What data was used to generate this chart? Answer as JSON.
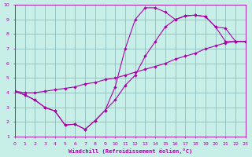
{
  "xlabel": "Windchill (Refroidissement éolien,°C)",
  "bg_color": "#c8eee8",
  "grid_color": "#8fbfbf",
  "line_color": "#aa00aa",
  "xlim": [
    0,
    23
  ],
  "ylim": [
    1,
    10
  ],
  "xticks": [
    0,
    1,
    2,
    3,
    4,
    5,
    6,
    7,
    8,
    9,
    10,
    11,
    12,
    13,
    14,
    15,
    16,
    17,
    18,
    19,
    20,
    21,
    22,
    23
  ],
  "yticks": [
    1,
    2,
    3,
    4,
    5,
    6,
    7,
    8,
    9,
    10
  ],
  "curve1_x": [
    0,
    1,
    2,
    3,
    4,
    5,
    6,
    7,
    8,
    9,
    10,
    11,
    12,
    13,
    14,
    15,
    16,
    17,
    18,
    19,
    20,
    21,
    22,
    23
  ],
  "curve1_y": [
    4.1,
    3.85,
    3.5,
    3.0,
    2.75,
    1.8,
    1.85,
    1.5,
    2.1,
    2.8,
    4.4,
    7.0,
    9.0,
    9.8,
    9.8,
    9.5,
    9.0,
    9.25,
    9.3,
    9.2,
    8.5,
    7.5,
    7.5,
    7.5
  ],
  "curve2_x": [
    0,
    1,
    2,
    3,
    4,
    5,
    6,
    7,
    8,
    9,
    10,
    11,
    12,
    13,
    14,
    15,
    16,
    17,
    18,
    19,
    20,
    21,
    22,
    23
  ],
  "curve2_y": [
    4.1,
    3.85,
    3.5,
    3.0,
    2.75,
    1.8,
    1.85,
    1.5,
    2.1,
    2.8,
    3.5,
    4.5,
    5.2,
    6.5,
    7.5,
    8.5,
    9.0,
    9.25,
    9.3,
    9.2,
    8.5,
    8.4,
    7.5,
    7.5
  ],
  "curve3_x": [
    0,
    1,
    2,
    3,
    4,
    5,
    6,
    7,
    8,
    9,
    10,
    11,
    12,
    13,
    14,
    15,
    16,
    17,
    18,
    19,
    20,
    21,
    22,
    23
  ],
  "curve3_y": [
    4.1,
    4.0,
    4.0,
    4.1,
    4.2,
    4.3,
    4.4,
    4.6,
    4.7,
    4.9,
    5.0,
    5.2,
    5.4,
    5.6,
    5.8,
    6.0,
    6.3,
    6.5,
    6.7,
    7.0,
    7.2,
    7.4,
    7.5,
    7.5
  ]
}
